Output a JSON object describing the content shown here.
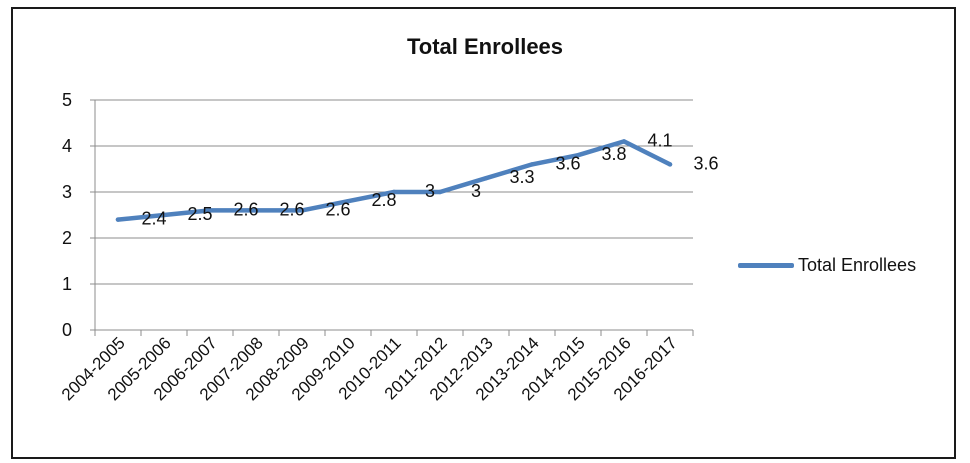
{
  "chart_data": {
    "type": "line",
    "title": "Total Enrollees",
    "categories": [
      "2004-2005",
      "2005-2006",
      "2006-2007",
      "2007-2008",
      "2008-2009",
      "2009-2010",
      "2010-2011",
      "2011-2012",
      "2012-2013",
      "2013-2014",
      "2014-2015",
      "2015-2016",
      "2016-2017"
    ],
    "series": [
      {
        "name": "Total Enrollees",
        "values": [
          2.4,
          2.5,
          2.6,
          2.6,
          2.6,
          2.8,
          3,
          3,
          3.3,
          3.6,
          3.8,
          4.1,
          3.6
        ]
      }
    ],
    "data_labels": [
      "2.4",
      "2.5",
      "2.6",
      "2.6",
      "2.6",
      "2.8",
      "3",
      "3",
      "3.3",
      "3.6",
      "3.8",
      "4.1",
      "3.6"
    ],
    "y_ticks": [
      "0",
      "1",
      "2",
      "3",
      "4",
      "5"
    ],
    "ylim": [
      0,
      5
    ],
    "xlabel": "",
    "ylabel": "",
    "grid": "horizontal",
    "legend_position": "right",
    "colors": {
      "series": "#4f81bd",
      "grid": "#8c8c8c"
    }
  }
}
